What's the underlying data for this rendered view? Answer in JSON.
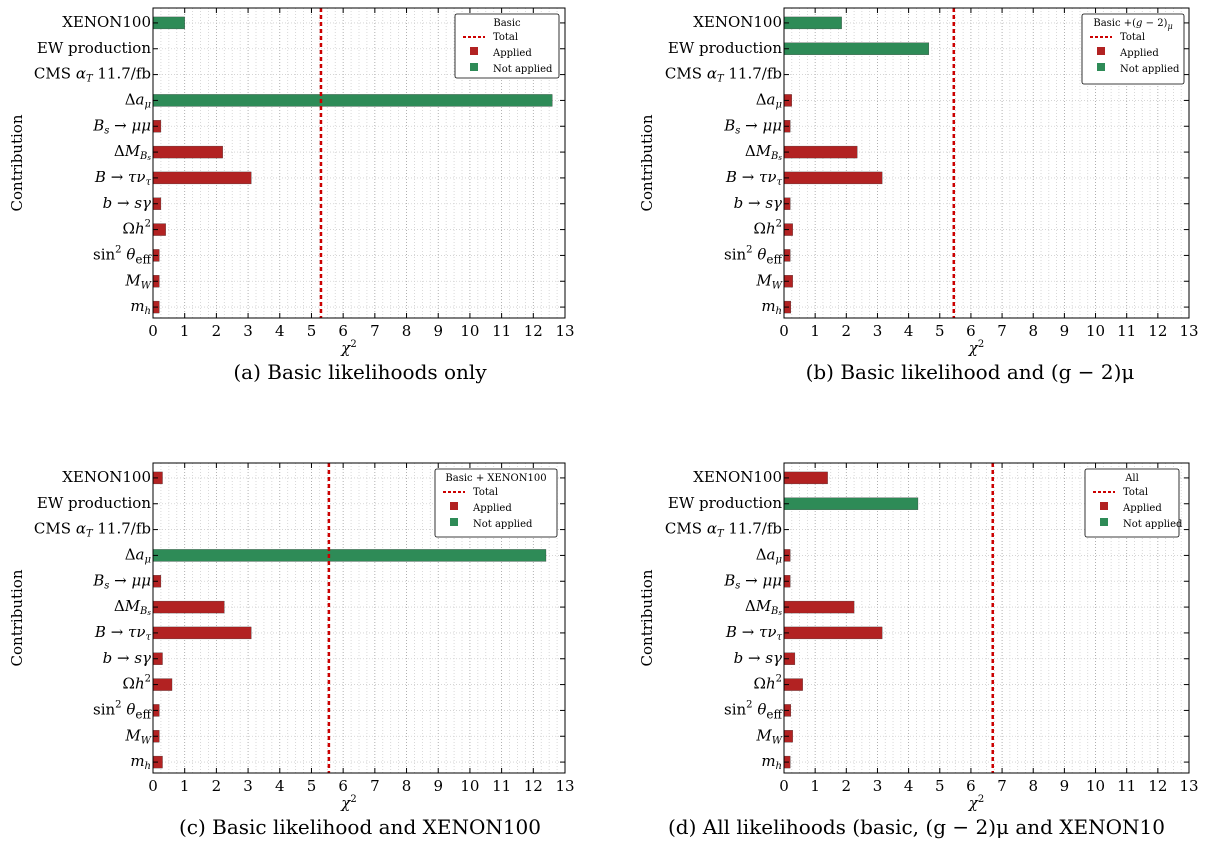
{
  "chart_data": [
    {
      "type": "bar",
      "orientation": "horizontal",
      "ylabel": "Contribution",
      "xlabel": "χ²",
      "xlim": [
        0,
        13
      ],
      "xticks": [
        "0",
        "1",
        "2",
        "3",
        "4",
        "5",
        "6",
        "7",
        "8",
        "9",
        "10",
        "11",
        "12",
        "13"
      ],
      "grid": true,
      "legend_placement": "top-right",
      "legend_title": "Basic",
      "legend_items": [
        "Total",
        "Applied",
        "Not applied"
      ],
      "caption": "(a) Basic likelihoods only",
      "total": 5.3,
      "categories": [
        "XENON100",
        "EW production",
        "CMS αT 11.7/fb",
        "Δaμ",
        "Bs → μμ",
        "ΔMBs",
        "B → τντ",
        "b → sγ",
        "Ωh²",
        "sin²θeff",
        "MW",
        "mh"
      ],
      "values": [
        1.0,
        0,
        0,
        12.6,
        0.25,
        2.2,
        3.1,
        0.25,
        0.4,
        0.2,
        0.2,
        0.2
      ],
      "status": [
        "not_applied",
        "none",
        "none",
        "not_applied",
        "applied",
        "applied",
        "applied",
        "applied",
        "applied",
        "applied",
        "applied",
        "applied"
      ]
    },
    {
      "type": "bar",
      "orientation": "horizontal",
      "ylabel": "Contribution",
      "xlabel": "χ²",
      "xlim": [
        0,
        13
      ],
      "xticks": [
        "0",
        "1",
        "2",
        "3",
        "4",
        "5",
        "6",
        "7",
        "8",
        "9",
        "10",
        "11",
        "12",
        "13"
      ],
      "grid": true,
      "legend_placement": "top-right",
      "legend_title": "Basic +(g − 2)μ",
      "legend_items": [
        "Total",
        "Applied",
        "Not applied"
      ],
      "caption": "(b) Basic likelihood and (g − 2)μ",
      "total": 5.45,
      "categories": [
        "XENON100",
        "EW production",
        "CMS αT 11.7/fb",
        "Δaμ",
        "Bs → μμ",
        "ΔMBs",
        "B → τντ",
        "b → sγ",
        "Ωh²",
        "sin²θeff",
        "MW",
        "mh"
      ],
      "values": [
        1.85,
        4.65,
        0,
        0.25,
        0.2,
        2.35,
        3.15,
        0.2,
        0.28,
        0.2,
        0.28,
        0.22
      ],
      "status": [
        "not_applied",
        "not_applied",
        "none",
        "applied",
        "applied",
        "applied",
        "applied",
        "applied",
        "applied",
        "applied",
        "applied",
        "applied"
      ]
    },
    {
      "type": "bar",
      "orientation": "horizontal",
      "ylabel": "Contribution",
      "xlabel": "χ²",
      "xlim": [
        0,
        13
      ],
      "xticks": [
        "0",
        "1",
        "2",
        "3",
        "4",
        "5",
        "6",
        "7",
        "8",
        "9",
        "10",
        "11",
        "12",
        "13"
      ],
      "grid": true,
      "legend_placement": "top-right",
      "legend_title": "Basic + XENON100",
      "legend_items": [
        "Total",
        "Applied",
        "Not applied"
      ],
      "caption": "(c) Basic likelihood and XENON100",
      "total": 5.55,
      "categories": [
        "XENON100",
        "EW production",
        "CMS αT 11.7/fb",
        "Δaμ",
        "Bs → μμ",
        "ΔMBs",
        "B → τντ",
        "b → sγ",
        "Ωh²",
        "sin²θeff",
        "MW",
        "mh"
      ],
      "values": [
        0.3,
        0,
        0,
        12.4,
        0.25,
        2.25,
        3.1,
        0.3,
        0.6,
        0.2,
        0.2,
        0.3
      ],
      "status": [
        "applied",
        "none",
        "none",
        "not_applied",
        "applied",
        "applied",
        "applied",
        "applied",
        "applied",
        "applied",
        "applied",
        "applied"
      ]
    },
    {
      "type": "bar",
      "orientation": "horizontal",
      "ylabel": "Contribution",
      "xlabel": "χ²",
      "xlim": [
        0,
        13
      ],
      "xticks": [
        "0",
        "1",
        "2",
        "3",
        "4",
        "5",
        "6",
        "7",
        "8",
        "9",
        "10",
        "11",
        "12",
        "13"
      ],
      "grid": true,
      "legend_placement": "top-right",
      "legend_title": "All",
      "legend_items": [
        "Total",
        "Applied",
        "Not applied"
      ],
      "caption": "(d) All likelihoods (basic, (g − 2)μ and XENON10",
      "total": 6.7,
      "categories": [
        "XENON100",
        "EW production",
        "CMS αT 11.7/fb",
        "Δaμ",
        "Bs → μμ",
        "ΔMBs",
        "B → τντ",
        "b → sγ",
        "Ωh²",
        "sin²θeff",
        "MW",
        "mh"
      ],
      "values": [
        1.4,
        4.3,
        0,
        0.2,
        0.2,
        2.25,
        3.15,
        0.35,
        0.6,
        0.22,
        0.28,
        0.2
      ],
      "status": [
        "applied",
        "not_applied",
        "none",
        "applied",
        "applied",
        "applied",
        "applied",
        "applied",
        "applied",
        "applied",
        "applied",
        "applied"
      ]
    }
  ],
  "colors": {
    "applied": "#b22222",
    "not_applied": "#2e8b57",
    "total": "#cc0000",
    "grid": "#bdbdbd"
  }
}
